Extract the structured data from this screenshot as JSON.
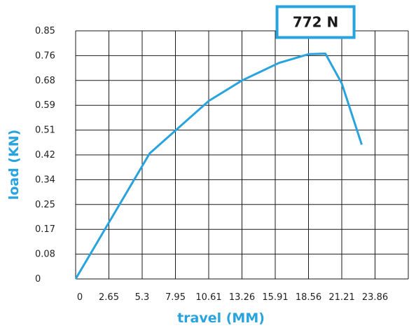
{
  "chart_data": {
    "type": "line",
    "title": "",
    "xlabel": "travel (MM)",
    "ylabel": "load (KN)",
    "x_ticks": [
      "0",
      "2.65",
      "5.3",
      "7.95",
      "10.61",
      "13.26",
      "15.91",
      "18.56",
      "21.21",
      "23.86"
    ],
    "y_ticks": [
      "0",
      "0.08",
      "0.17",
      "0.25",
      "0.34",
      "0.42",
      "0.51",
      "0.59",
      "0.68",
      "0.76",
      "0.85"
    ],
    "xlim": [
      0,
      26.51
    ],
    "ylim": [
      0,
      0.85
    ],
    "grid": true,
    "series": [
      {
        "x": [
          0,
          5.9,
          10.61,
          13.26,
          16.2,
          18.56,
          19.9,
          21.21,
          22.8
        ],
        "y": [
          0,
          0.43,
          0.61,
          0.68,
          0.74,
          0.77,
          0.772,
          0.67,
          0.46
        ]
      }
    ],
    "annotation": {
      "text": "772 N",
      "x": 19.9,
      "y": 0.772
    },
    "colors": {
      "line": "#29a3dd",
      "axis_title": "#29a3dd",
      "badge_border": "#29a3dd",
      "grid": "#1a1a1a"
    }
  }
}
